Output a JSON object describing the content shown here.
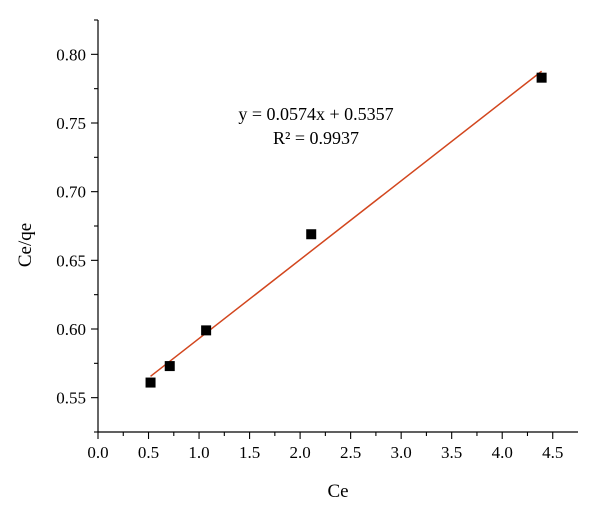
{
  "chart_data": {
    "type": "scatter",
    "xlabel": "Ce",
    "ylabel": "Ce/qe",
    "xlim": [
      0.0,
      4.75
    ],
    "ylim": [
      0.525,
      0.825
    ],
    "x_ticks": [
      "0.0",
      "0.5",
      "1.0",
      "1.5",
      "2.0",
      "2.5",
      "3.0",
      "3.5",
      "4.0",
      "4.5"
    ],
    "y_ticks": [
      "0.55",
      "0.60",
      "0.65",
      "0.70",
      "0.75",
      "0.80"
    ],
    "series": [
      {
        "x": [
          0.52,
          0.71,
          1.07,
          2.11,
          4.39
        ],
        "y": [
          0.561,
          0.573,
          0.599,
          0.669,
          0.783
        ]
      }
    ],
    "fit_line": {
      "slope": 0.0574,
      "intercept": 0.5357,
      "x_range": [
        0.52,
        4.39
      ],
      "color": "#d2461e"
    },
    "annotations": {
      "equation": "y = 0.0574x + 0.5357",
      "r_squared": "R² = 0.9937"
    },
    "grid": false,
    "legend": "none"
  }
}
